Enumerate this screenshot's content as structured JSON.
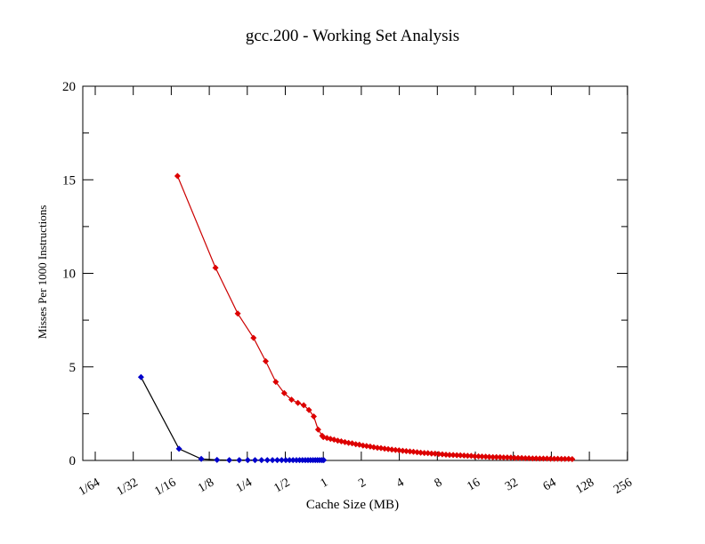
{
  "window": {
    "background": "#ffffff"
  },
  "chart_data": {
    "type": "line",
    "title": "gcc.200 - Working Set Analysis",
    "xlabel": "Cache Size (MB)",
    "ylabel": "Misses Per 1000 Instructions",
    "x_scale": "log2",
    "xlim_mb": [
      0.0127,
      256
    ],
    "ylim": [
      0,
      20
    ],
    "grid": false,
    "legend": "none",
    "x_ticks": [
      {
        "label": "1/64",
        "mb": 0.015625
      },
      {
        "label": "1/32",
        "mb": 0.03125
      },
      {
        "label": "1/16",
        "mb": 0.0625
      },
      {
        "label": "1/8",
        "mb": 0.125
      },
      {
        "label": "1/4",
        "mb": 0.25
      },
      {
        "label": "1/2",
        "mb": 0.5
      },
      {
        "label": "1",
        "mb": 1
      },
      {
        "label": "2",
        "mb": 2
      },
      {
        "label": "4",
        "mb": 4
      },
      {
        "label": "8",
        "mb": 8
      },
      {
        "label": "16",
        "mb": 16
      },
      {
        "label": "32",
        "mb": 32
      },
      {
        "label": "64",
        "mb": 64
      },
      {
        "label": "128",
        "mb": 128
      },
      {
        "label": "256",
        "mb": 256
      }
    ],
    "y_ticks_major": [
      0,
      5,
      10,
      15,
      20
    ],
    "y_ticks_minor": [
      2.5,
      7.5,
      12.5,
      17.5
    ],
    "series": [
      {
        "id": "red",
        "marker": "diamond",
        "marker_color": "#dd0000",
        "line_color": "#cc0000",
        "points": [
          [
            0.07,
            15.2
          ],
          [
            0.14,
            10.3
          ],
          [
            0.21,
            7.85
          ],
          [
            0.28,
            6.55
          ],
          [
            0.35,
            5.3
          ],
          [
            0.42,
            4.2
          ],
          [
            0.49,
            3.6
          ],
          [
            0.56,
            3.25
          ],
          [
            0.63,
            3.08
          ],
          [
            0.7,
            2.95
          ],
          [
            0.77,
            2.7
          ],
          [
            0.84,
            2.35
          ],
          [
            0.91,
            1.65
          ],
          [
            0.98,
            1.32
          ],
          [
            1.0,
            1.25
          ],
          [
            1.068,
            1.2
          ],
          [
            1.141,
            1.15
          ],
          [
            1.218,
            1.11
          ],
          [
            1.301,
            1.06
          ],
          [
            1.389,
            1.02
          ],
          [
            1.484,
            0.98
          ],
          [
            1.585,
            0.94
          ],
          [
            1.693,
            0.91
          ],
          [
            1.808,
            0.87
          ],
          [
            1.931,
            0.84
          ],
          [
            2.062,
            0.8
          ],
          [
            2.202,
            0.77
          ],
          [
            2.352,
            0.74
          ],
          [
            2.512,
            0.71
          ],
          [
            2.683,
            0.68
          ],
          [
            2.865,
            0.66
          ],
          [
            3.06,
            0.63
          ],
          [
            3.268,
            0.61
          ],
          [
            3.49,
            0.58
          ],
          [
            3.728,
            0.56
          ],
          [
            3.981,
            0.54
          ],
          [
            4.252,
            0.52
          ],
          [
            4.541,
            0.5
          ],
          [
            4.85,
            0.48
          ],
          [
            5.179,
            0.46
          ],
          [
            5.532,
            0.44
          ],
          [
            5.908,
            0.42
          ],
          [
            6.31,
            0.4
          ],
          [
            6.739,
            0.39
          ],
          [
            7.197,
            0.37
          ],
          [
            7.686,
            0.36
          ],
          [
            8.209,
            0.34
          ],
          [
            8.767,
            0.33
          ],
          [
            9.363,
            0.31
          ],
          [
            10.0,
            0.3
          ],
          [
            10.68,
            0.29
          ],
          [
            11.41,
            0.28
          ],
          [
            12.18,
            0.27
          ],
          [
            13.01,
            0.26
          ],
          [
            13.89,
            0.25
          ],
          [
            14.84,
            0.24
          ],
          [
            15.85,
            0.22
          ],
          [
            16.93,
            0.22
          ],
          [
            18.08,
            0.21
          ],
          [
            19.31,
            0.2
          ],
          [
            20.62,
            0.19
          ],
          [
            22.02,
            0.18
          ],
          [
            23.52,
            0.18
          ],
          [
            25.12,
            0.17
          ],
          [
            26.83,
            0.16
          ],
          [
            28.65,
            0.16
          ],
          [
            30.6,
            0.15
          ],
          [
            32.68,
            0.14
          ],
          [
            34.9,
            0.14
          ],
          [
            37.28,
            0.13
          ],
          [
            39.81,
            0.12
          ],
          [
            42.52,
            0.12
          ],
          [
            45.41,
            0.11
          ],
          [
            48.5,
            0.11
          ],
          [
            51.79,
            0.1
          ],
          [
            55.32,
            0.1
          ],
          [
            59.08,
            0.1
          ],
          [
            63.1,
            0.09
          ],
          [
            67.39,
            0.09
          ],
          [
            71.97,
            0.09
          ],
          [
            76.86,
            0.08
          ],
          [
            82.09,
            0.08
          ],
          [
            87.67,
            0.08
          ],
          [
            93.63,
            0.07
          ]
        ]
      },
      {
        "id": "blue",
        "marker": "diamond",
        "marker_color": "#0000cc",
        "line_color": "#000000",
        "points": [
          [
            0.036,
            4.45
          ],
          [
            0.072,
            0.62
          ],
          [
            0.108,
            0.08
          ],
          [
            0.144,
            0.03
          ],
          [
            0.18,
            0.02
          ],
          [
            0.216,
            0.02
          ],
          [
            0.252,
            0.02
          ],
          [
            0.288,
            0.02
          ],
          [
            0.324,
            0.02
          ],
          [
            0.36,
            0.02
          ],
          [
            0.396,
            0.02
          ],
          [
            0.432,
            0.02
          ],
          [
            0.468,
            0.02
          ],
          [
            0.504,
            0.02
          ],
          [
            0.54,
            0.02
          ],
          [
            0.576,
            0.02
          ],
          [
            0.612,
            0.02
          ],
          [
            0.648,
            0.02
          ],
          [
            0.684,
            0.02
          ],
          [
            0.72,
            0.02
          ],
          [
            0.756,
            0.02
          ],
          [
            0.792,
            0.02
          ],
          [
            0.828,
            0.02
          ],
          [
            0.864,
            0.02
          ],
          [
            0.9,
            0.02
          ],
          [
            0.936,
            0.02
          ],
          [
            0.972,
            0.02
          ],
          [
            1.008,
            0.02
          ]
        ]
      }
    ]
  }
}
